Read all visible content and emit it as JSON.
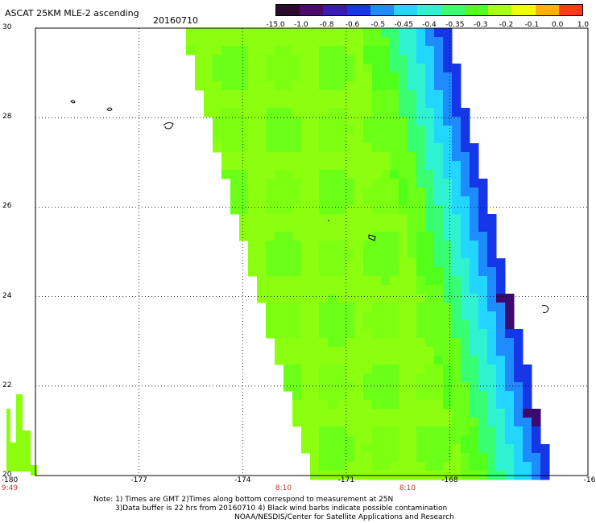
{
  "header": {
    "title": "ASCAT 25KM MLE-2 ascending",
    "date": "20160710"
  },
  "colorbar": {
    "labels": [
      "-15.0",
      "-1.0",
      "-0.8",
      "-0.6",
      "-0.5",
      "-0.45",
      "-0.4",
      "-0.35",
      "-0.3",
      "-0.2",
      "-0.1",
      "0.0",
      "1.0"
    ],
    "colors": [
      "#2a0a2e",
      "#4b0a6b",
      "#3a19b5",
      "#1637e8",
      "#1e8cff",
      "#22d6ff",
      "#2ff2d0",
      "#38ff72",
      "#52ff1a",
      "#a8ff10",
      "#f0ff00",
      "#ffb000",
      "#ff3a1a"
    ]
  },
  "axes": {
    "y_ticks": [
      "30",
      "28",
      "26",
      "24",
      "22",
      "20"
    ],
    "x_ticks": [
      "-180",
      "-177",
      "-174",
      "-171",
      "-168",
      "-16"
    ],
    "time_labels": [
      "9:49",
      "8:10",
      "8:10"
    ]
  },
  "notes": {
    "line1": "Note: 1) Times are GMT 2)Times along bottom correspond to measurement at 25N",
    "line2": "3)Data buffer is 22 hrs from 20160710 4) Black wind barbs indicate possible contamination",
    "line3": "NOAA/NESDIS/Center for Satellite Applications and Research"
  },
  "map": {
    "lon_range": [
      -180,
      -164
    ],
    "lat_range": [
      20,
      30
    ],
    "grid": true
  }
}
